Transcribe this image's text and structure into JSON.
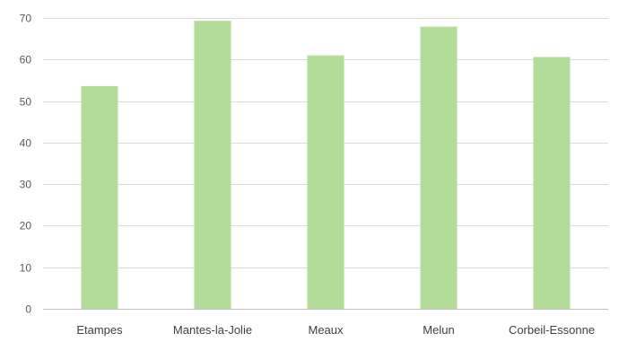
{
  "chart_data": {
    "type": "bar",
    "categories": [
      "Etampes",
      "Mantes-la-Jolie",
      "Meaux",
      "Melun",
      "Corbeil-Essonne"
    ],
    "values": [
      53.6,
      69.3,
      61.0,
      67.9,
      60.6
    ],
    "ylim": [
      0,
      70
    ],
    "yticks": [
      0,
      10,
      20,
      30,
      40,
      50,
      60,
      70
    ],
    "grid": true,
    "legend": "none",
    "bar_color": "#b3dc99",
    "title": "",
    "xlabel": "",
    "ylabel": ""
  }
}
